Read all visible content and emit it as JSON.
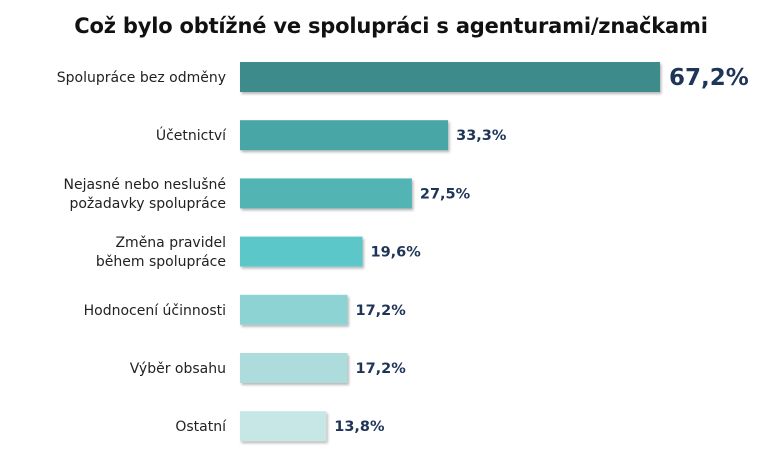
{
  "chart_data": {
    "type": "bar",
    "orientation": "horizontal",
    "title": "Což bylo obtížné ve spolupráci s agenturami/značkami",
    "xlabel": "",
    "ylabel": "",
    "xlim": [
      0,
      67.2
    ],
    "grid": false,
    "legend": "none",
    "categories": [
      "Spolupráce bez odměny",
      "Účetnictví",
      "Nejasné nebo neslušné požadavky spolupráce",
      "Změna pravidel během spolupráce",
      "Hodnocení účinnosti",
      "Výběr obsahu",
      "Ostatní"
    ],
    "category_lines": [
      [
        "Spolupráce bez odměny"
      ],
      [
        "Účetnictví"
      ],
      [
        "Nejasné nebo neslušné",
        "požadavky spolupráce"
      ],
      [
        "Změna pravidel",
        "během spolupráce"
      ],
      [
        "Hodnocení účinnosti"
      ],
      [
        "Výběr obsahu"
      ],
      [
        "Ostatní"
      ]
    ],
    "values": [
      67.2,
      33.3,
      27.5,
      19.6,
      17.2,
      17.2,
      13.8
    ],
    "value_labels": [
      "67,2%",
      "33,3%",
      "27,5%",
      "19,6%",
      "17,2%",
      "17,2%",
      "13,8%"
    ],
    "colors": [
      "#3d8b8b",
      "#48a6a6",
      "#52b4b4",
      "#5cc7c9",
      "#8dd3d3",
      "#aedcdc",
      "#c7e7e7"
    ],
    "value_label_color": "#1f3557"
  }
}
